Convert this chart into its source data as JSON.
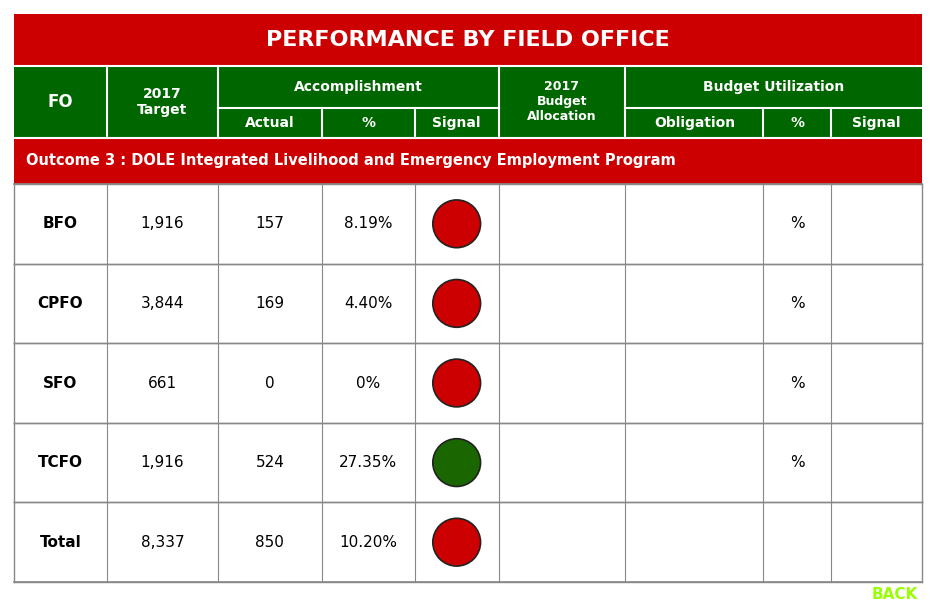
{
  "title": "PERFORMANCE BY FIELD OFFICE",
  "title_bg": "#CC0000",
  "title_color": "#FFFFFF",
  "header_bg": "#006600",
  "header_color": "#FFFFFF",
  "outcome_bg": "#CC0000",
  "outcome_color": "#FFFFFF",
  "outcome_text": "Outcome 3 : DOLE Integrated Livelihood and Emergency Employment Program",
  "table_bg": "#FFFFFF",
  "grid_color": "#888888",
  "back_color": "#99FF00",
  "back_text": "BACK",
  "rows": [
    {
      "fo": "BFO",
      "target": "1,916",
      "actual": "157",
      "pct": "8.19%",
      "signal": "red",
      "budget": "",
      "obligation": "",
      "bpct": "%",
      "bsignal": ""
    },
    {
      "fo": "CPFO",
      "target": "3,844",
      "actual": "169",
      "pct": "4.40%",
      "signal": "red",
      "budget": "",
      "obligation": "",
      "bpct": "%",
      "bsignal": ""
    },
    {
      "fo": "SFO",
      "target": "661",
      "actual": "0",
      "pct": "0%",
      "signal": "red",
      "budget": "",
      "obligation": "",
      "bpct": "%",
      "bsignal": ""
    },
    {
      "fo": "TCFO",
      "target": "1,916",
      "actual": "524",
      "pct": "27.35%",
      "signal": "green",
      "budget": "",
      "obligation": "",
      "bpct": "%",
      "bsignal": ""
    },
    {
      "fo": "Total",
      "target": "8,337",
      "actual": "850",
      "pct": "10.20%",
      "signal": "red",
      "budget": "",
      "obligation": "",
      "bpct": "",
      "bsignal": ""
    }
  ]
}
